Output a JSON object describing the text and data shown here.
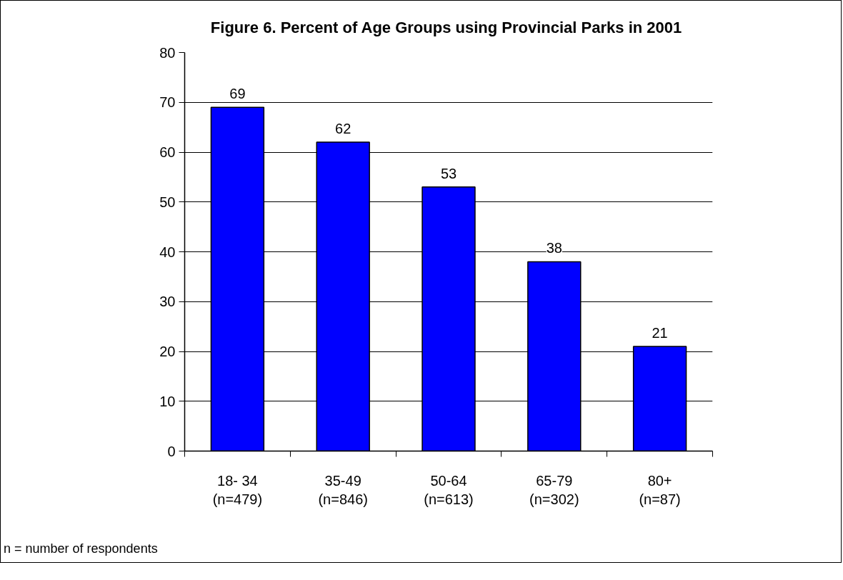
{
  "chart_data": {
    "type": "bar",
    "title": "Figure 6.  Percent of Age Groups using Provincial Parks in 2001",
    "categories": [
      "18- 34\n(n=479)",
      "35-49\n(n=846)",
      "50-64\n(n=613)",
      "65-79\n(n=302)",
      "80+\n(n=87)"
    ],
    "values": [
      69,
      62,
      53,
      38,
      21
    ],
    "color": "#0000ff",
    "ylim": [
      0,
      80
    ],
    "yticks": [
      0,
      10,
      20,
      30,
      40,
      50,
      60,
      70,
      80
    ],
    "grid": "y",
    "data_labels": true,
    "annotations": [
      "n = number of respondents"
    ]
  }
}
